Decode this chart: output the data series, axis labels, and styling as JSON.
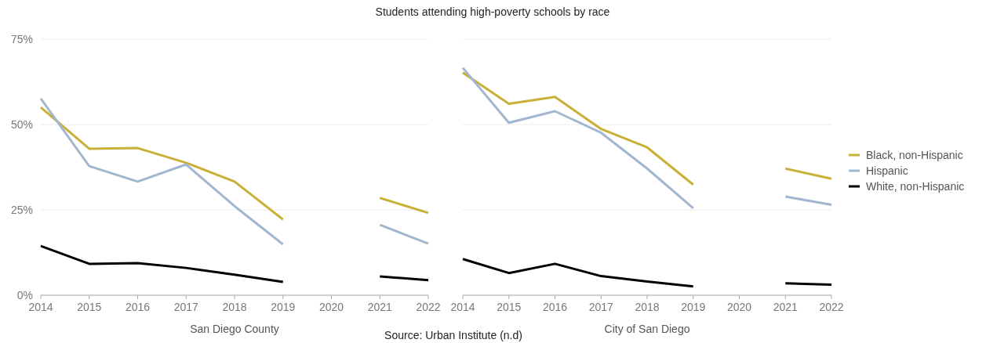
{
  "chart_data": [
    {
      "type": "line",
      "title": "Students attending high-poverty schools by race",
      "xlabel": "San Diego County",
      "annotations": [
        "Source: Urban Institute (n.d)"
      ],
      "categories": [
        "2014",
        "2015",
        "2016",
        "2017",
        "2018",
        "2019",
        "2020",
        "2021",
        "2022"
      ],
      "ylim": [
        0,
        75
      ],
      "yticks": [
        {
          "value": 0,
          "label": "0%"
        },
        {
          "value": 25,
          "label": "25%"
        },
        {
          "value": 50,
          "label": "50%"
        },
        {
          "value": 75,
          "label": "75%"
        }
      ],
      "grid": "y",
      "legend": false,
      "series": [
        {
          "color": "#c9b037",
          "values": [
            55.0,
            42.9,
            43.1,
            38.8,
            33.3,
            22.2,
            null,
            28.5,
            24.1
          ]
        },
        {
          "color": "#a2b7cf",
          "values": [
            57.6,
            37.8,
            33.3,
            38.3,
            26.1,
            14.9,
            null,
            20.6,
            15.1
          ]
        },
        {
          "color": "#000000",
          "values": [
            14.4,
            9.2,
            9.4,
            8.0,
            6.0,
            3.9,
            null,
            5.5,
            4.4
          ]
        }
      ]
    },
    {
      "type": "line",
      "xlabel": "City of San Diego",
      "categories": [
        "2014",
        "2015",
        "2016",
        "2017",
        "2018",
        "2019",
        "2020",
        "2021",
        "2022"
      ],
      "ylim": [
        0,
        75
      ],
      "yticks": [
        0,
        25,
        50,
        75
      ],
      "tick_labels": "x",
      "grid": "y",
      "legend": "right",
      "series": [
        {
          "name": "Black, non-Hispanic",
          "color": "#c9b037",
          "values": [
            65.2,
            56.1,
            58.1,
            48.7,
            43.3,
            32.4,
            null,
            37.1,
            34.1
          ]
        },
        {
          "name": "Hispanic",
          "color": "#a2b7cf",
          "values": [
            66.6,
            50.5,
            53.9,
            47.6,
            37.1,
            25.5,
            null,
            28.9,
            26.5
          ]
        },
        {
          "name": "White, non-Hispanic",
          "color": "#000000",
          "values": [
            10.6,
            6.5,
            9.2,
            5.6,
            4.0,
            2.6,
            null,
            3.5,
            3.1
          ]
        }
      ]
    }
  ]
}
